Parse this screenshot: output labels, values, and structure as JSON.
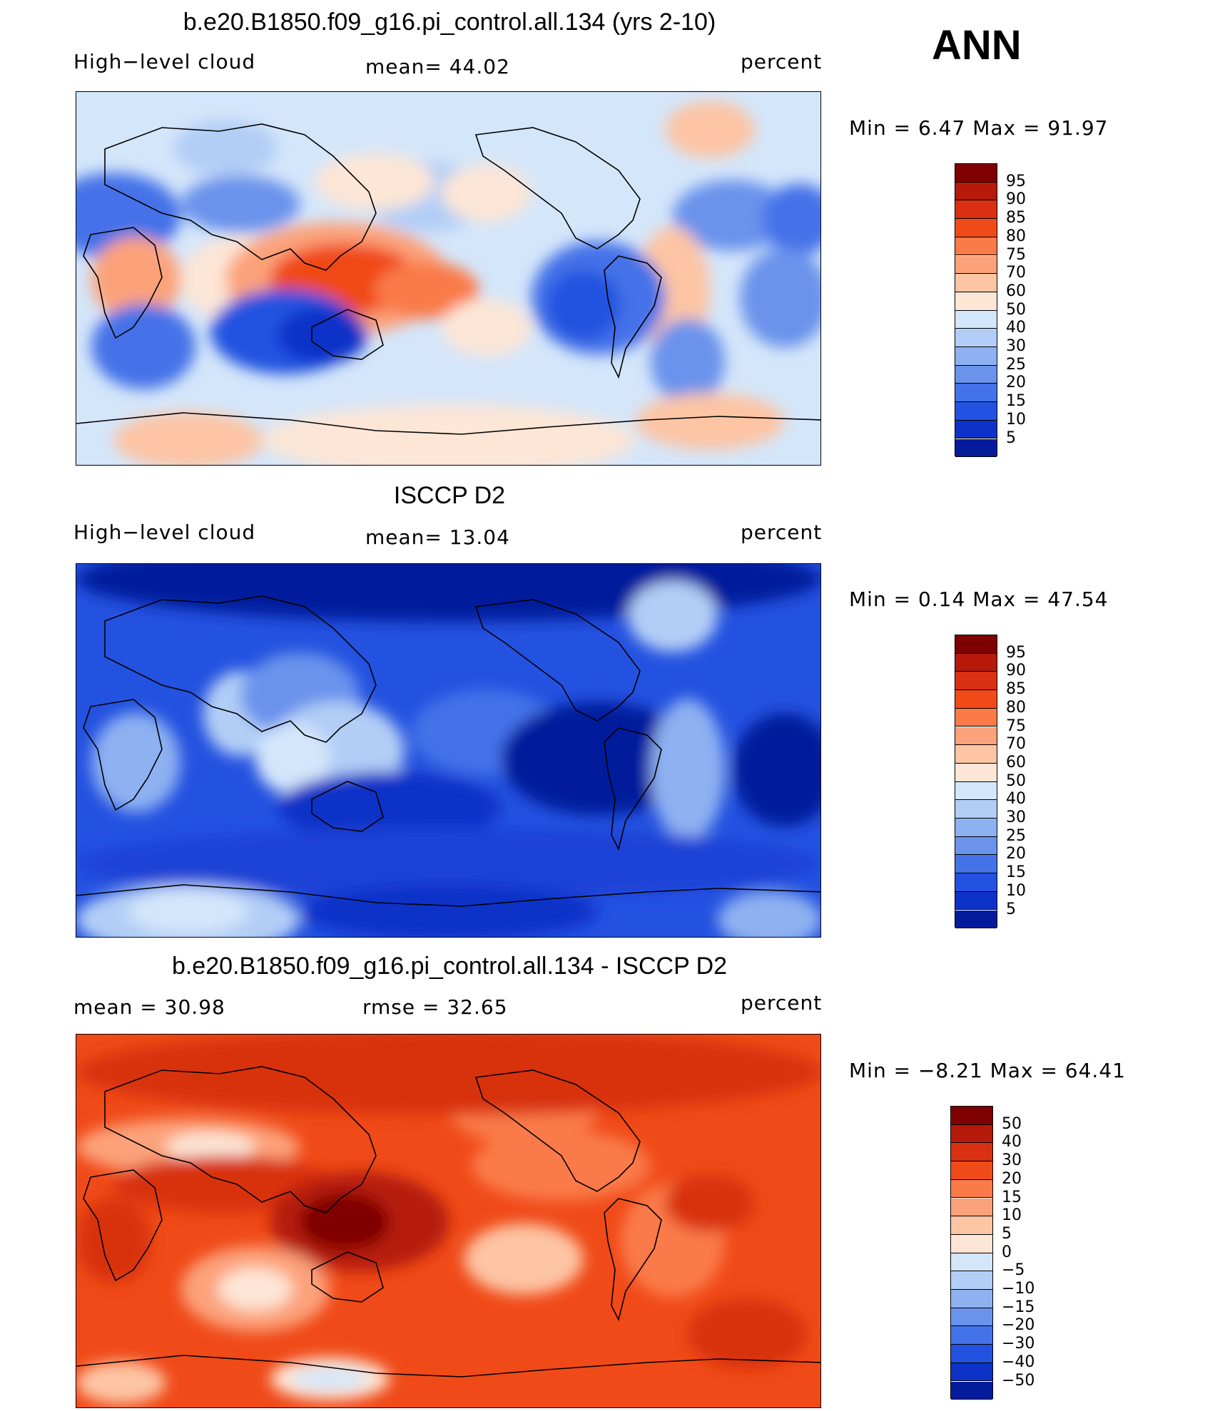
{
  "season": "ANN",
  "panels": [
    {
      "title": "b.e20.B1850.f09_g16.pi_control.all.134 (yrs 2-10)",
      "left_label": "High−level cloud",
      "center_label": "mean=   44.02",
      "right_label": "percent",
      "minmax": "Min =    6.47 Max =   91.97",
      "style": "model"
    },
    {
      "title": "ISCCP D2",
      "left_label": "High−level cloud",
      "center_label": "mean=   13.04",
      "right_label": "percent",
      "minmax": "Min =    0.14 Max =   47.54",
      "style": "obs"
    },
    {
      "title": "b.e20.B1850.f09_g16.pi_control.all.134 - ISCCP D2",
      "left_label": "mean =   30.98",
      "center_label": "rmse =   32.65",
      "right_label": "percent",
      "minmax": "Min =  −8.21 Max =   64.41",
      "style": "diff"
    }
  ],
  "colorbars": {
    "absolute": {
      "labels": [
        "95",
        "90",
        "85",
        "80",
        "75",
        "70",
        "60",
        "50",
        "40",
        "30",
        "25",
        "20",
        "15",
        "10",
        "5"
      ],
      "colors": [
        "#7f0000",
        "#b51a0a",
        "#d83010",
        "#f04a18",
        "#fa7a48",
        "#fca27a",
        "#fdc5a4",
        "#fde6d6",
        "#d4e6fa",
        "#b2cef6",
        "#8eb1f1",
        "#6a93ec",
        "#4472e8",
        "#2452e0",
        "#0c32c8",
        "#041c9c"
      ]
    },
    "difference": {
      "labels": [
        "50",
        "40",
        "30",
        "20",
        "15",
        "10",
        "5",
        "0",
        "−5",
        "−10",
        "−15",
        "−20",
        "−30",
        "−40",
        "−50"
      ],
      "colors": [
        "#7f0000",
        "#b51a0a",
        "#d83010",
        "#f04a18",
        "#fa7a48",
        "#fca27a",
        "#fdc5a4",
        "#fde6d6",
        "#d4e6fa",
        "#b2cef6",
        "#8eb1f1",
        "#6a93ec",
        "#4472e8",
        "#2452e0",
        "#0c32c8",
        "#041c9c"
      ]
    }
  }
}
